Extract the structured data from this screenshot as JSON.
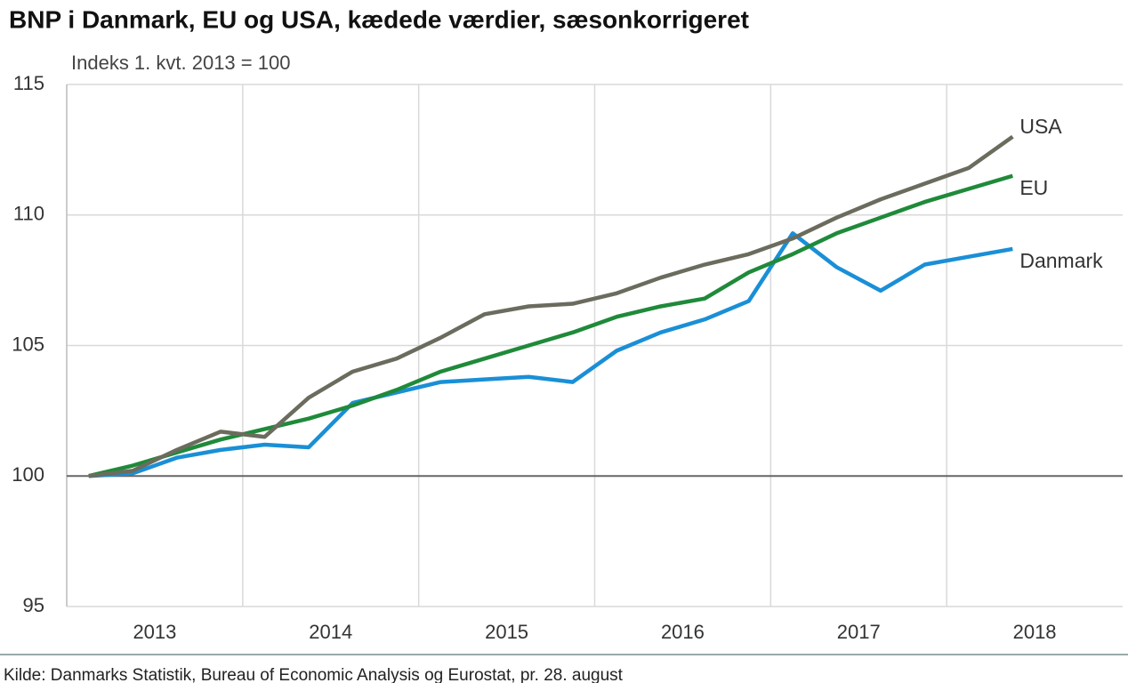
{
  "chart_data": {
    "type": "line",
    "title": "BNP i Danmark, EU og USA, kædede værdier, sæsonkorrigeret",
    "subtitle": "Indeks 1. kvt. 2013 = 100",
    "source": "Kilde: Danmarks Statistik, Bureau of Economic Analysis og Eurostat, pr. 28. august",
    "x": [
      2013.125,
      2013.375,
      2013.625,
      2013.875,
      2014.125,
      2014.375,
      2014.625,
      2014.875,
      2015.125,
      2015.375,
      2015.625,
      2015.875,
      2016.125,
      2016.375,
      2016.625,
      2016.875,
      2017.125,
      2017.375,
      2017.625,
      2017.875,
      2018.125,
      2018.375
    ],
    "xlim": [
      2013,
      2019
    ],
    "xticks": [
      {
        "value": 2013.5,
        "label": "2013"
      },
      {
        "value": 2014.5,
        "label": "2014"
      },
      {
        "value": 2015.5,
        "label": "2015"
      },
      {
        "value": 2016.5,
        "label": "2016"
      },
      {
        "value": 2017.5,
        "label": "2017"
      },
      {
        "value": 2018.5,
        "label": "2018"
      }
    ],
    "xgrid": [
      2014,
      2015,
      2016,
      2017,
      2018
    ],
    "ylim": [
      95,
      115
    ],
    "yticks": [
      95,
      100,
      105,
      110,
      115
    ],
    "baseline": 100,
    "grid": true,
    "series": [
      {
        "name": "Danmark",
        "color": "#1a8fd6",
        "values": [
          100.0,
          100.1,
          100.7,
          101.0,
          101.2,
          101.1,
          102.8,
          103.2,
          103.6,
          103.7,
          103.8,
          103.6,
          104.8,
          105.5,
          106.0,
          106.7,
          109.3,
          108.0,
          107.1,
          108.1,
          108.4,
          108.7
        ]
      },
      {
        "name": "EU",
        "color": "#1f8a3a",
        "values": [
          100.0,
          100.4,
          100.9,
          101.4,
          101.8,
          102.2,
          102.7,
          103.3,
          104.0,
          104.5,
          105.0,
          105.5,
          106.1,
          106.5,
          106.8,
          107.8,
          108.5,
          109.3,
          109.9,
          110.5,
          111.0,
          111.5
        ]
      },
      {
        "name": "USA",
        "color": "#6b6b5e",
        "values": [
          100.0,
          100.2,
          101.0,
          101.7,
          101.5,
          103.0,
          104.0,
          104.5,
          105.3,
          106.2,
          106.5,
          106.6,
          107.0,
          107.6,
          108.1,
          108.5,
          109.1,
          109.9,
          110.6,
          111.2,
          111.8,
          113.0
        ]
      }
    ]
  }
}
